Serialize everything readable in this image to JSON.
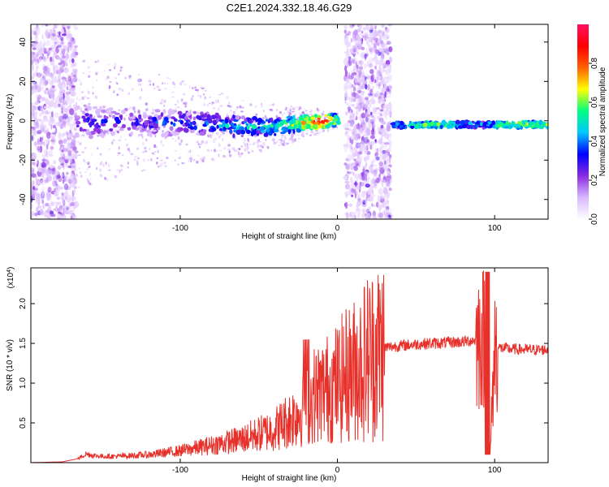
{
  "title": "C2E1.2024.332.18.46.G29",
  "colors": {
    "snr_line": "#e8302a",
    "axis": "#000000",
    "spectrogram_sparse": "#b585ec",
    "spectrogram_dense": "#5a10d8"
  },
  "chart_data": [
    {
      "type": "heatmap",
      "title": "C2E1.2024.332.18.46.G29",
      "xlabel": "Height of straight line (km)",
      "ylabel": "Frequency (Hz)",
      "xlim": [
        -195,
        134
      ],
      "ylim": [
        -50,
        49
      ],
      "x_ticks": [
        -100,
        0,
        100
      ],
      "x_tick_labels": [
        "-100",
        "0",
        "100"
      ],
      "y_ticks": [
        -40,
        -20,
        0,
        20,
        40
      ],
      "y_tick_labels": [
        "-40",
        "-20",
        "0",
        "20",
        "40"
      ],
      "grid": false,
      "colorbar": {
        "label": "Normalized spectral amplitude",
        "range": [
          0,
          1
        ],
        "ticks": [
          0.0,
          0.2,
          0.4,
          0.6,
          0.8
        ],
        "tick_labels": [
          "0.0",
          "0.2",
          "0.4",
          "0.6",
          "0.8"
        ],
        "colormap": [
          "#ffffff",
          "#d9b8ff",
          "#8a2be2",
          "#0000ff",
          "#00c8ff",
          "#00ff80",
          "#ffff00",
          "#ff6000",
          "#ff0000",
          "#ff1060"
        ]
      },
      "noise_regions_km": [
        [
          -195,
          -166
        ],
        [
          5,
          34
        ]
      ],
      "signal_trace": [
        {
          "x": -166,
          "y": -1,
          "amp": 0.3
        },
        {
          "x": -140,
          "y": 0,
          "amp": 0.3
        },
        {
          "x": -120,
          "y": -1,
          "amp": 0.3
        },
        {
          "x": -100,
          "y": -1,
          "amp": 0.35
        },
        {
          "x": -80,
          "y": -2,
          "amp": 0.4
        },
        {
          "x": -60,
          "y": -3,
          "amp": 0.45
        },
        {
          "x": -40,
          "y": -3,
          "amp": 0.5
        },
        {
          "x": -20,
          "y": -1,
          "amp": 0.7
        },
        {
          "x": -8,
          "y": 0,
          "amp": 0.85
        },
        {
          "x": 0,
          "y": 0,
          "amp": 0.6
        },
        {
          "x": 36,
          "y": -2,
          "amp": 0.45
        },
        {
          "x": 50,
          "y": -2,
          "amp": 0.55
        },
        {
          "x": 70,
          "y": -2,
          "amp": 0.6
        },
        {
          "x": 90,
          "y": -2,
          "amp": 0.4
        },
        {
          "x": 110,
          "y": -2,
          "amp": 0.65
        },
        {
          "x": 134,
          "y": -2,
          "amp": 0.55
        }
      ]
    },
    {
      "type": "line",
      "xlabel": "Height of straight line (km)",
      "ylabel": "SNR (10 * v/v)",
      "y_multiplier_label": "(x10^4)",
      "xlim": [
        -195,
        134
      ],
      "ylim": [
        0,
        2.45
      ],
      "x_ticks": [
        -100,
        0,
        100
      ],
      "x_tick_labels": [
        "-100",
        "0",
        "100"
      ],
      "y_ticks": [
        0.5,
        1.0,
        1.5,
        2.0
      ],
      "y_tick_labels": [
        "0.5",
        "1.0",
        "1.5",
        "2.0"
      ],
      "grid": false,
      "series": [
        {
          "color": "#e8302a",
          "x": [
            -195,
            -175,
            -165,
            -160,
            -155,
            -150,
            -140,
            -120,
            -100,
            -80,
            -60,
            -40,
            -30,
            -20,
            -15,
            -10,
            -5,
            0,
            5,
            10,
            15,
            20,
            30,
            40,
            50,
            60,
            70,
            80,
            90,
            95,
            97,
            100,
            110,
            120,
            134
          ],
          "y": [
            0.0,
            0.01,
            0.05,
            0.11,
            0.09,
            0.08,
            0.08,
            0.1,
            0.15,
            0.22,
            0.3,
            0.42,
            0.55,
            0.7,
            0.85,
            0.9,
            0.95,
            1.0,
            1.1,
            1.15,
            1.25,
            1.35,
            1.45,
            1.47,
            1.49,
            1.5,
            1.51,
            1.52,
            1.55,
            1.6,
            0.05,
            1.45,
            1.43,
            1.42,
            1.42
          ]
        }
      ]
    }
  ]
}
